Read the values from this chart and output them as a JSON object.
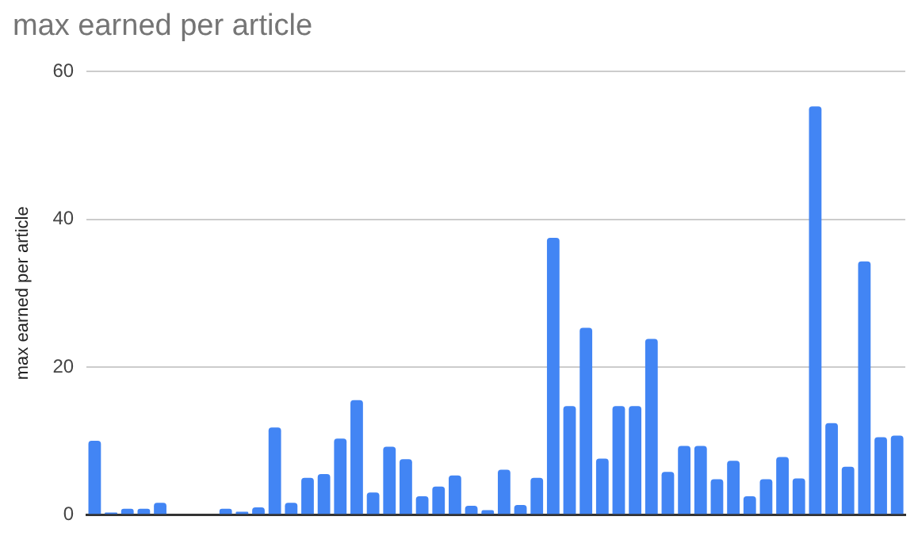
{
  "chart_data": {
    "type": "bar",
    "title": "max earned per article",
    "ylabel": "max earned per article",
    "categories": [
      null,
      null,
      null,
      null,
      null,
      null,
      null,
      null,
      null,
      null,
      null,
      null,
      null,
      null,
      null,
      null,
      null,
      null,
      null,
      null,
      null,
      null,
      null,
      null,
      null,
      null,
      null,
      null,
      null,
      null,
      null,
      null,
      null,
      null,
      null,
      null,
      null,
      null,
      null,
      null,
      null,
      null,
      null,
      null,
      null,
      null,
      null,
      null,
      null,
      null
    ],
    "values": [
      10,
      0.3,
      0.8,
      0.8,
      1.6,
      0,
      0,
      0,
      0.8,
      0.4,
      1,
      11.8,
      1.6,
      5,
      5.5,
      10.3,
      15.5,
      3,
      9.2,
      7.5,
      2.5,
      3.8,
      5.3,
      1.2,
      0.6,
      6.1,
      1.3,
      5,
      37.5,
      14.7,
      25.3,
      7.6,
      14.7,
      14.7,
      23.8,
      5.8,
      9.3,
      9.3,
      4.8,
      7.3,
      2.5,
      4.8,
      7.8,
      4.9,
      55.3,
      12.4,
      6.5,
      34.3,
      10.5,
      10.7
    ],
    "color": "#4285f4",
    "ylim": [
      0,
      60
    ],
    "yticks": [
      0,
      20,
      40,
      60
    ],
    "grid": "y",
    "legend": false
  }
}
